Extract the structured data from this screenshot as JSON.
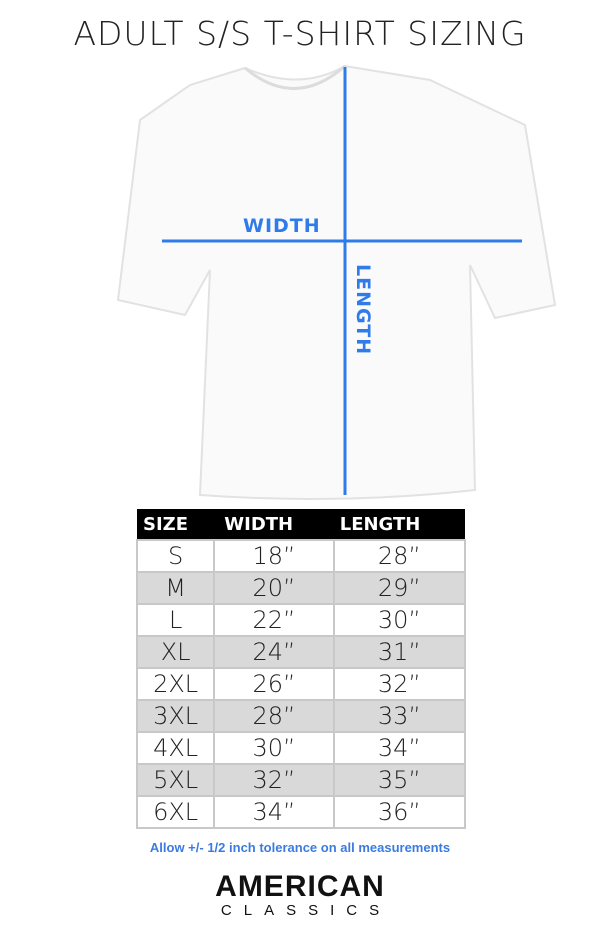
{
  "title": "ADULT S/S T-SHIRT SIZING",
  "diagram": {
    "width_label": "WIDTH",
    "length_label": "LENGTH",
    "line_color": "#2f7bea"
  },
  "table": {
    "headers": [
      "SIZE",
      "WIDTH",
      "LENGTH"
    ],
    "rows": [
      [
        "S",
        "18”",
        "28”"
      ],
      [
        "M",
        "20”",
        "29”"
      ],
      [
        "L",
        "22”",
        "30”"
      ],
      [
        "XL",
        "24”",
        "31”"
      ],
      [
        "2XL",
        "26”",
        "32”"
      ],
      [
        "3XL",
        "28”",
        "33”"
      ],
      [
        "4XL",
        "30”",
        "34”"
      ],
      [
        "5XL",
        "32”",
        "35”"
      ],
      [
        "6XL",
        "34”",
        "36”"
      ]
    ]
  },
  "note": "Allow +/- 1/2 inch tolerance on all measurements",
  "brand": {
    "line1": "AMERICAN",
    "line2": "CLASSICS"
  }
}
